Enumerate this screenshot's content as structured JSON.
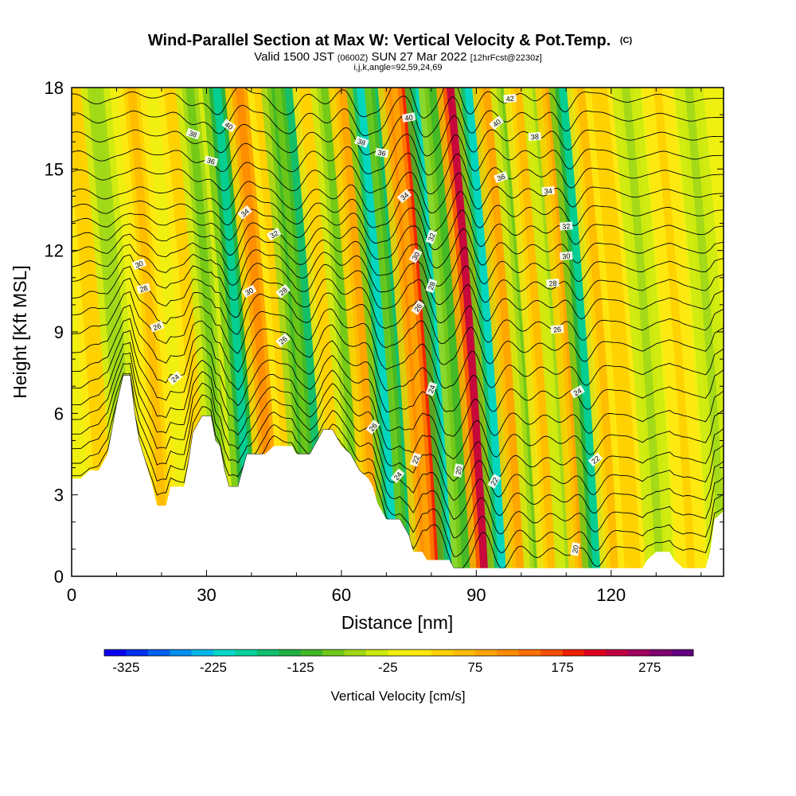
{
  "chart_data": {
    "type": "heatmap",
    "title": "Wind-Parallel Section at Max W: Vertical Velocity & Pot.Temp.",
    "title_mark": "(C)",
    "subtitle_parts": [
      "Valid 1500 JST ",
      "(0600Z)",
      " SUN 27 Mar 2022 ",
      "[12hrFcst@2230z]"
    ],
    "subtitle2": "i,j,k,angle=92,59,24,69",
    "xlabel": "Distance [nm]",
    "ylabel": "Height [Kft MSL]",
    "x_ticks": [
      "0",
      "30",
      "60",
      "90",
      "120"
    ],
    "y_ticks": [
      "0",
      "3",
      "6",
      "9",
      "12",
      "15",
      "18"
    ],
    "xlim": [
      0,
      145
    ],
    "ylim": [
      0,
      18
    ],
    "field": "Vertical Velocity",
    "colorbar": {
      "label": "Vertical Velocity [cm/s]",
      "ticks": [
        "-325",
        "-225",
        "-125",
        "-25",
        "75",
        "175",
        "275"
      ],
      "colors": [
        "#0a00f0",
        "#0030f0",
        "#0060f0",
        "#0090f0",
        "#00b8e8",
        "#00d8c8",
        "#00d09a",
        "#10c070",
        "#20b040",
        "#40b828",
        "#70c818",
        "#a0d818",
        "#ccea10",
        "#f0f010",
        "#ffe810",
        "#ffd000",
        "#ffbb00",
        "#ffa400",
        "#ff8c00",
        "#ff7000",
        "#f85000",
        "#ee2000",
        "#dd0020",
        "#c00040",
        "#a00060",
        "#800070",
        "#640080"
      ]
    },
    "velocity_bands": [
      {
        "x": 4,
        "strength": 50
      },
      {
        "x": 9,
        "strength": -60
      },
      {
        "x": 17,
        "strength": 70
      },
      {
        "x": 26,
        "strength": 60
      },
      {
        "x": 30,
        "strength": -80
      },
      {
        "x": 36,
        "strength": -175
      },
      {
        "x": 41,
        "strength": 130
      },
      {
        "x": 46,
        "strength": 60
      },
      {
        "x": 49,
        "strength": -90
      },
      {
        "x": 52,
        "strength": -150
      },
      {
        "x": 56,
        "strength": 60
      },
      {
        "x": 60,
        "strength": -70
      },
      {
        "x": 64,
        "strength": 110
      },
      {
        "x": 68,
        "strength": -190
      },
      {
        "x": 72,
        "strength": -140
      },
      {
        "x": 75,
        "strength": 130
      },
      {
        "x": 78,
        "strength": 210
      },
      {
        "x": 81,
        "strength": -210
      },
      {
        "x": 84,
        "strength": -90
      },
      {
        "x": 88,
        "strength": 240
      },
      {
        "x": 92,
        "strength": -190
      },
      {
        "x": 96,
        "strength": 90
      },
      {
        "x": 100,
        "strength": -70
      },
      {
        "x": 103,
        "strength": 70
      },
      {
        "x": 107,
        "strength": -50
      },
      {
        "x": 110,
        "strength": 100
      },
      {
        "x": 113,
        "strength": -170
      },
      {
        "x": 117,
        "strength": 70
      },
      {
        "x": 121,
        "strength": 50
      },
      {
        "x": 127,
        "strength": -40
      },
      {
        "x": 134,
        "strength": 45
      },
      {
        "x": 141,
        "strength": -40
      }
    ],
    "terrain_height": [
      {
        "x": 0,
        "y": 3.6
      },
      {
        "x": 2,
        "y": 3.6
      },
      {
        "x": 4,
        "y": 3.9
      },
      {
        "x": 6,
        "y": 3.9
      },
      {
        "x": 8,
        "y": 4.5
      },
      {
        "x": 10,
        "y": 6.3
      },
      {
        "x": 11.5,
        "y": 7.4
      },
      {
        "x": 13,
        "y": 7.4
      },
      {
        "x": 14,
        "y": 6.0
      },
      {
        "x": 15,
        "y": 5.0
      },
      {
        "x": 17,
        "y": 3.9
      },
      {
        "x": 18,
        "y": 3.3
      },
      {
        "x": 19,
        "y": 2.6
      },
      {
        "x": 21,
        "y": 2.6
      },
      {
        "x": 22,
        "y": 3.3
      },
      {
        "x": 25,
        "y": 3.3
      },
      {
        "x": 26,
        "y": 4.2
      },
      {
        "x": 27,
        "y": 5.3
      },
      {
        "x": 28,
        "y": 5.6
      },
      {
        "x": 29,
        "y": 5.9
      },
      {
        "x": 31,
        "y": 5.9
      },
      {
        "x": 32,
        "y": 5.0
      },
      {
        "x": 33,
        "y": 4.8
      },
      {
        "x": 34,
        "y": 3.9
      },
      {
        "x": 35,
        "y": 3.3
      },
      {
        "x": 37,
        "y": 3.3
      },
      {
        "x": 38,
        "y": 3.9
      },
      {
        "x": 39,
        "y": 4.5
      },
      {
        "x": 43,
        "y": 4.5
      },
      {
        "x": 45,
        "y": 4.8
      },
      {
        "x": 49,
        "y": 4.8
      },
      {
        "x": 50,
        "y": 4.5
      },
      {
        "x": 53,
        "y": 4.5
      },
      {
        "x": 54,
        "y": 4.8
      },
      {
        "x": 56,
        "y": 5.4
      },
      {
        "x": 58,
        "y": 5.4
      },
      {
        "x": 59,
        "y": 5.1
      },
      {
        "x": 60,
        "y": 4.8
      },
      {
        "x": 62,
        "y": 4.5
      },
      {
        "x": 64,
        "y": 3.9
      },
      {
        "x": 66,
        "y": 3.6
      },
      {
        "x": 67,
        "y": 3.3
      },
      {
        "x": 68,
        "y": 2.7
      },
      {
        "x": 69,
        "y": 2.4
      },
      {
        "x": 70,
        "y": 2.1
      },
      {
        "x": 73,
        "y": 2.1
      },
      {
        "x": 74,
        "y": 1.8
      },
      {
        "x": 75,
        "y": 1.5
      },
      {
        "x": 76,
        "y": 0.9
      },
      {
        "x": 78,
        "y": 0.9
      },
      {
        "x": 79,
        "y": 0.6
      },
      {
        "x": 84,
        "y": 0.6
      },
      {
        "x": 85,
        "y": 0.3
      },
      {
        "x": 127,
        "y": 0.3
      },
      {
        "x": 128,
        "y": 0.6
      },
      {
        "x": 130,
        "y": 0.9
      },
      {
        "x": 133,
        "y": 0.9
      },
      {
        "x": 134,
        "y": 0.6
      },
      {
        "x": 136,
        "y": 0.3
      },
      {
        "x": 141,
        "y": 0.3
      },
      {
        "x": 142,
        "y": 0.9
      },
      {
        "x": 143,
        "y": 2.1
      },
      {
        "x": 145,
        "y": 2.4
      }
    ],
    "isentropes": [
      {
        "value": 20,
        "base_height": 0.6
      },
      {
        "value": 21,
        "base_height": 1.2
      },
      {
        "value": 22,
        "base_height": 1.9
      },
      {
        "value": 23,
        "base_height": 2.6
      },
      {
        "value": 24,
        "base_height": 3.3
      },
      {
        "value": 25,
        "base_height": 4.0
      },
      {
        "value": 26,
        "base_height": 4.8
      },
      {
        "value": 27,
        "base_height": 5.6
      },
      {
        "value": 28,
        "base_height": 6.5
      },
      {
        "value": 29,
        "base_height": 7.4
      },
      {
        "value": 30,
        "base_height": 8.3
      },
      {
        "value": 31,
        "base_height": 9.1
      },
      {
        "value": 32,
        "base_height": 9.9
      },
      {
        "value": 33,
        "base_height": 10.6
      },
      {
        "value": 34,
        "base_height": 11.3
      },
      {
        "value": 35,
        "base_height": 12.0
      },
      {
        "value": 36,
        "base_height": 12.7
      },
      {
        "value": 37,
        "base_height": 13.4
      },
      {
        "value": 38,
        "base_height": 14.1
      },
      {
        "value": 39,
        "base_height": 14.8
      },
      {
        "value": 40,
        "base_height": 15.5
      },
      {
        "value": 41,
        "base_height": 16.2
      },
      {
        "value": 42,
        "base_height": 16.9
      },
      {
        "value": 43,
        "base_height": 17.6
      }
    ],
    "contour_labels": [
      {
        "text": "40",
        "x": 35,
        "y": 16.6,
        "angle": 35
      },
      {
        "text": "38",
        "x": 27,
        "y": 16.3,
        "angle": 20
      },
      {
        "text": "36",
        "x": 31,
        "y": 15.3,
        "angle": 15
      },
      {
        "text": "34",
        "x": 38.5,
        "y": 13.4,
        "angle": -40
      },
      {
        "text": "32",
        "x": 45,
        "y": 12.6,
        "angle": -30
      },
      {
        "text": "30",
        "x": 15,
        "y": 11.5,
        "angle": -20
      },
      {
        "text": "28",
        "x": 16,
        "y": 10.6,
        "angle": -15
      },
      {
        "text": "26",
        "x": 19,
        "y": 9.2,
        "angle": -20
      },
      {
        "text": "30",
        "x": 39.5,
        "y": 10.5,
        "angle": -30
      },
      {
        "text": "28",
        "x": 47,
        "y": 10.5,
        "angle": -40
      },
      {
        "text": "26",
        "x": 47,
        "y": 8.7,
        "angle": -40
      },
      {
        "text": "24",
        "x": 23,
        "y": 7.3,
        "angle": -40
      },
      {
        "text": "38",
        "x": 64.5,
        "y": 16.0,
        "angle": 20
      },
      {
        "text": "36",
        "x": 69,
        "y": 15.6,
        "angle": 10
      },
      {
        "text": "40",
        "x": 75,
        "y": 16.9,
        "angle": -10
      },
      {
        "text": "34",
        "x": 74,
        "y": 14.0,
        "angle": -40
      },
      {
        "text": "32",
        "x": 80,
        "y": 12.5,
        "angle": -70
      },
      {
        "text": "30",
        "x": 76.5,
        "y": 11.8,
        "angle": -60
      },
      {
        "text": "28",
        "x": 80,
        "y": 10.7,
        "angle": -70
      },
      {
        "text": "26",
        "x": 77,
        "y": 9.9,
        "angle": -55
      },
      {
        "text": "24",
        "x": 80,
        "y": 6.9,
        "angle": -70
      },
      {
        "text": "26",
        "x": 67,
        "y": 5.5,
        "angle": -50
      },
      {
        "text": "24",
        "x": 72.5,
        "y": 3.7,
        "angle": -50
      },
      {
        "text": "22",
        "x": 76.5,
        "y": 4.3,
        "angle": -70
      },
      {
        "text": "20",
        "x": 86,
        "y": 3.9,
        "angle": -80
      },
      {
        "text": "22",
        "x": 94,
        "y": 3.5,
        "angle": -60
      },
      {
        "text": "42",
        "x": 97.5,
        "y": 17.6,
        "angle": -5
      },
      {
        "text": "40",
        "x": 94.5,
        "y": 16.7,
        "angle": -40
      },
      {
        "text": "38",
        "x": 103,
        "y": 16.2,
        "angle": -5
      },
      {
        "text": "36",
        "x": 95.5,
        "y": 14.7,
        "angle": -20
      },
      {
        "text": "34",
        "x": 106,
        "y": 14.2,
        "angle": -5
      },
      {
        "text": "32",
        "x": 110,
        "y": 12.9,
        "angle": -5
      },
      {
        "text": "30",
        "x": 110,
        "y": 11.8,
        "angle": -5
      },
      {
        "text": "28",
        "x": 107,
        "y": 10.8,
        "angle": -5
      },
      {
        "text": "26",
        "x": 108,
        "y": 9.1,
        "angle": -5
      },
      {
        "text": "24",
        "x": 112.5,
        "y": 6.8,
        "angle": -30
      },
      {
        "text": "22",
        "x": 116.5,
        "y": 4.3,
        "angle": -40
      },
      {
        "text": "20",
        "x": 112,
        "y": 1.0,
        "angle": -80
      }
    ]
  }
}
